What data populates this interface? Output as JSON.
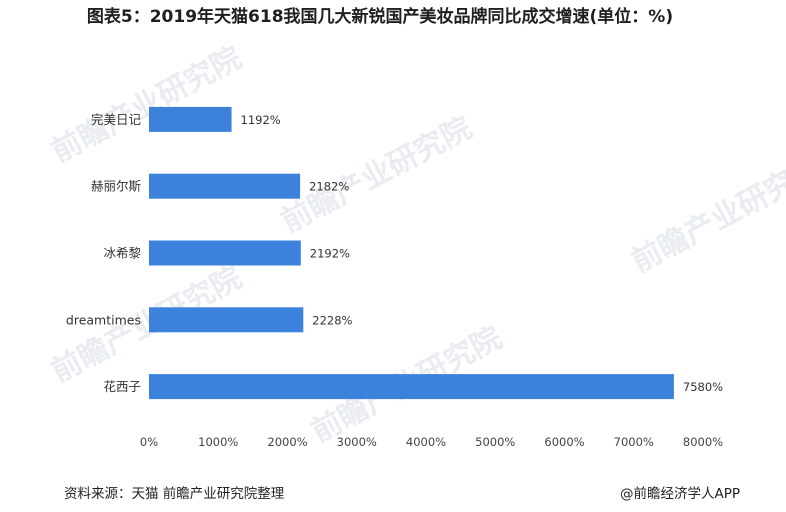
{
  "title": "图表5：2019年天猫618我国几大新锐国产美妆品牌同比成交增速(单位：%)",
  "chart_data": {
    "type": "bar",
    "orientation": "horizontal",
    "categories": [
      "完美日记",
      "赫丽尔斯",
      "冰希黎",
      "dreamtimes",
      "花西子"
    ],
    "values": [
      1192,
      2182,
      2192,
      2228,
      7580
    ],
    "value_labels": [
      "1192%",
      "2182%",
      "2192%",
      "2228%",
      "7580%"
    ],
    "xlim": [
      0,
      8000
    ],
    "xticks": [
      "0%",
      "1000%",
      "2000%",
      "3000%",
      "4000%",
      "5000%",
      "6000%",
      "7000%",
      "8000%"
    ],
    "grid": false,
    "bar_color": "#3c82dc"
  },
  "footer": {
    "source": "资料来源：天猫 前瞻产业研究院整理",
    "brand": "@前瞻经济学人APP"
  },
  "watermark_text": "前瞻产业研究院"
}
